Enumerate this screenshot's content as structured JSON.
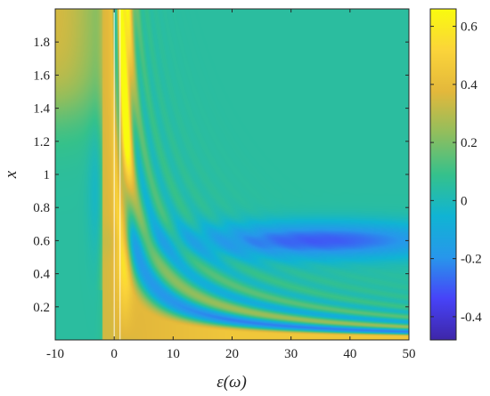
{
  "chart_data": {
    "type": "heatmap",
    "title": "",
    "xlabel": "ε(ω)",
    "ylabel": "x",
    "xlim": [
      -10,
      50
    ],
    "ylim": [
      0,
      2
    ],
    "x_ticks": [
      -10,
      0,
      10,
      20,
      30,
      40,
      50
    ],
    "y_ticks": [
      0.2,
      0.4,
      0.6,
      0.8,
      1,
      1.2,
      1.4,
      1.6,
      1.8
    ],
    "colorbar": {
      "range": [
        -0.48,
        0.66
      ],
      "ticks": [
        -0.4,
        -0.2,
        0,
        0.2,
        0.4,
        0.6
      ],
      "tick_labels": [
        "-0.4",
        "-0.2",
        "0",
        "0.2",
        "0.4",
        "0.6"
      ],
      "colormap": "parula",
      "stops": [
        "#3e26a8",
        "#4743f8",
        "#2797eb",
        "#10b4d3",
        "#35c18b",
        "#91be5d",
        "#e3b83b",
        "#fbd43a",
        "#f9fb0e"
      ]
    },
    "vertical_lines_x": [
      0,
      1
    ],
    "grid": false,
    "legend": "none"
  }
}
